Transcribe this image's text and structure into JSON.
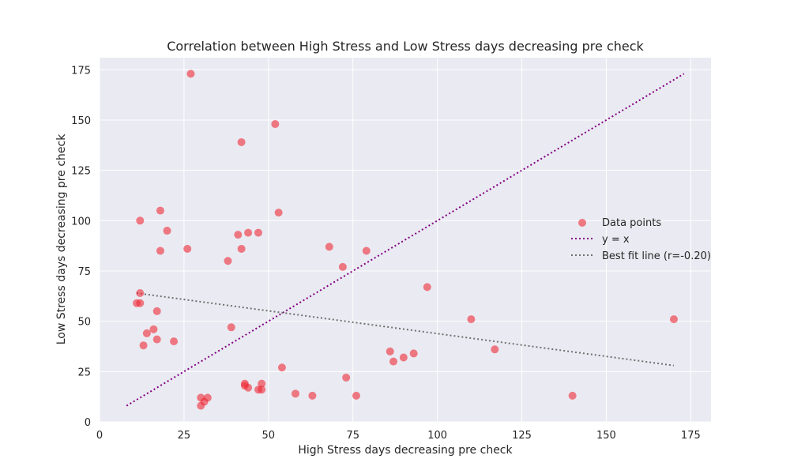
{
  "chart_data": {
    "type": "scatter",
    "title": "Correlation between High Stress and Low Stress days decreasing pre  check",
    "xlabel": "High Stress days decreasing pre  check",
    "ylabel": "Low Stress days decreasing pre  check",
    "xlim": [
      0,
      181
    ],
    "ylim": [
      0,
      181
    ],
    "xticks": [
      0,
      25,
      50,
      75,
      100,
      125,
      150,
      175
    ],
    "yticks": [
      0,
      25,
      50,
      75,
      100,
      125,
      150,
      175
    ],
    "grid": true,
    "legend_position": "center-right",
    "colors": {
      "points": "#ee2a35",
      "identity_line": "#800080",
      "fit_line": "#707070",
      "background": "#eaeaf2",
      "grid": "#ffffff"
    },
    "series": [
      {
        "name": "Data points",
        "kind": "scatter",
        "points": [
          [
            27,
            173
          ],
          [
            52,
            148
          ],
          [
            42,
            139
          ],
          [
            53,
            104
          ],
          [
            18,
            105
          ],
          [
            12,
            100
          ],
          [
            20,
            95
          ],
          [
            41,
            93
          ],
          [
            44,
            94
          ],
          [
            47,
            94
          ],
          [
            26,
            86
          ],
          [
            18,
            85
          ],
          [
            42,
            86
          ],
          [
            68,
            87
          ],
          [
            79,
            85
          ],
          [
            38,
            80
          ],
          [
            72,
            77
          ],
          [
            97,
            67
          ],
          [
            12,
            64
          ],
          [
            11,
            59
          ],
          [
            12,
            59
          ],
          [
            17,
            55
          ],
          [
            16,
            46
          ],
          [
            14,
            44
          ],
          [
            39,
            47
          ],
          [
            17,
            41
          ],
          [
            22,
            40
          ],
          [
            13,
            38
          ],
          [
            110,
            51
          ],
          [
            170,
            51
          ],
          [
            86,
            35
          ],
          [
            117,
            36
          ],
          [
            93,
            34
          ],
          [
            90,
            32
          ],
          [
            87,
            30
          ],
          [
            54,
            27
          ],
          [
            73,
            22
          ],
          [
            43,
            19
          ],
          [
            48,
            19
          ],
          [
            43,
            18
          ],
          [
            44,
            17
          ],
          [
            47,
            16
          ],
          [
            48,
            16
          ],
          [
            58,
            14
          ],
          [
            63,
            13
          ],
          [
            76,
            13
          ],
          [
            140,
            13
          ],
          [
            30,
            12
          ],
          [
            32,
            12
          ],
          [
            31,
            10
          ],
          [
            30,
            8
          ]
        ]
      },
      {
        "name": "y = x",
        "kind": "line",
        "points": [
          [
            8,
            8
          ],
          [
            173,
            173
          ]
        ]
      },
      {
        "name": "Best fit line (r=-0.20)",
        "kind": "line",
        "points": [
          [
            11,
            64
          ],
          [
            170,
            28
          ]
        ]
      }
    ]
  }
}
